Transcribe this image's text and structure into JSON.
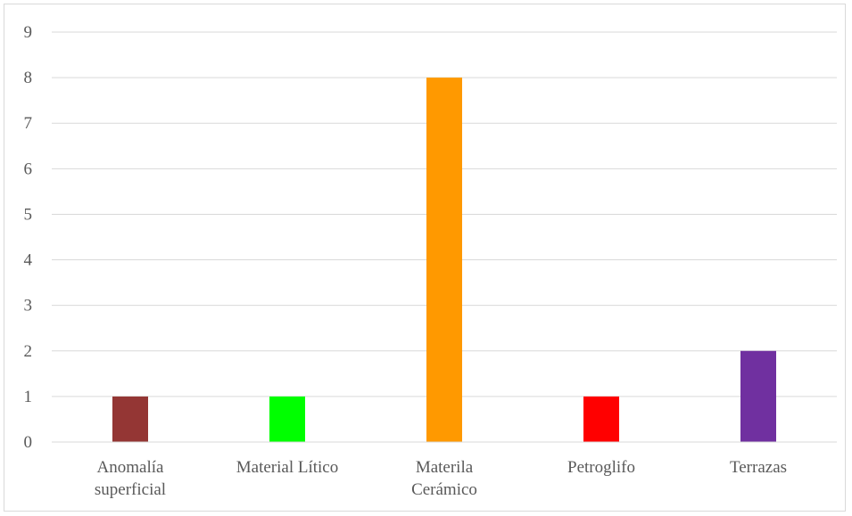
{
  "chart_data": {
    "type": "bar",
    "categories": [
      [
        "Anomalía",
        "superficial"
      ],
      [
        "Material Lítico"
      ],
      [
        "Materila",
        "Cerámico"
      ],
      [
        "Petroglifo"
      ],
      [
        "Terrazas"
      ]
    ],
    "values": [
      1,
      1,
      8,
      1,
      2
    ],
    "colors": [
      "#943634",
      "#00ff00",
      "#ff9900",
      "#ff0000",
      "#7030a0"
    ],
    "ylim": [
      0,
      9
    ],
    "yticks": [
      "0",
      "1",
      "2",
      "3",
      "4",
      "5",
      "6",
      "7",
      "8",
      "9"
    ],
    "grid": true,
    "title": "",
    "xlabel": "",
    "ylabel": ""
  }
}
